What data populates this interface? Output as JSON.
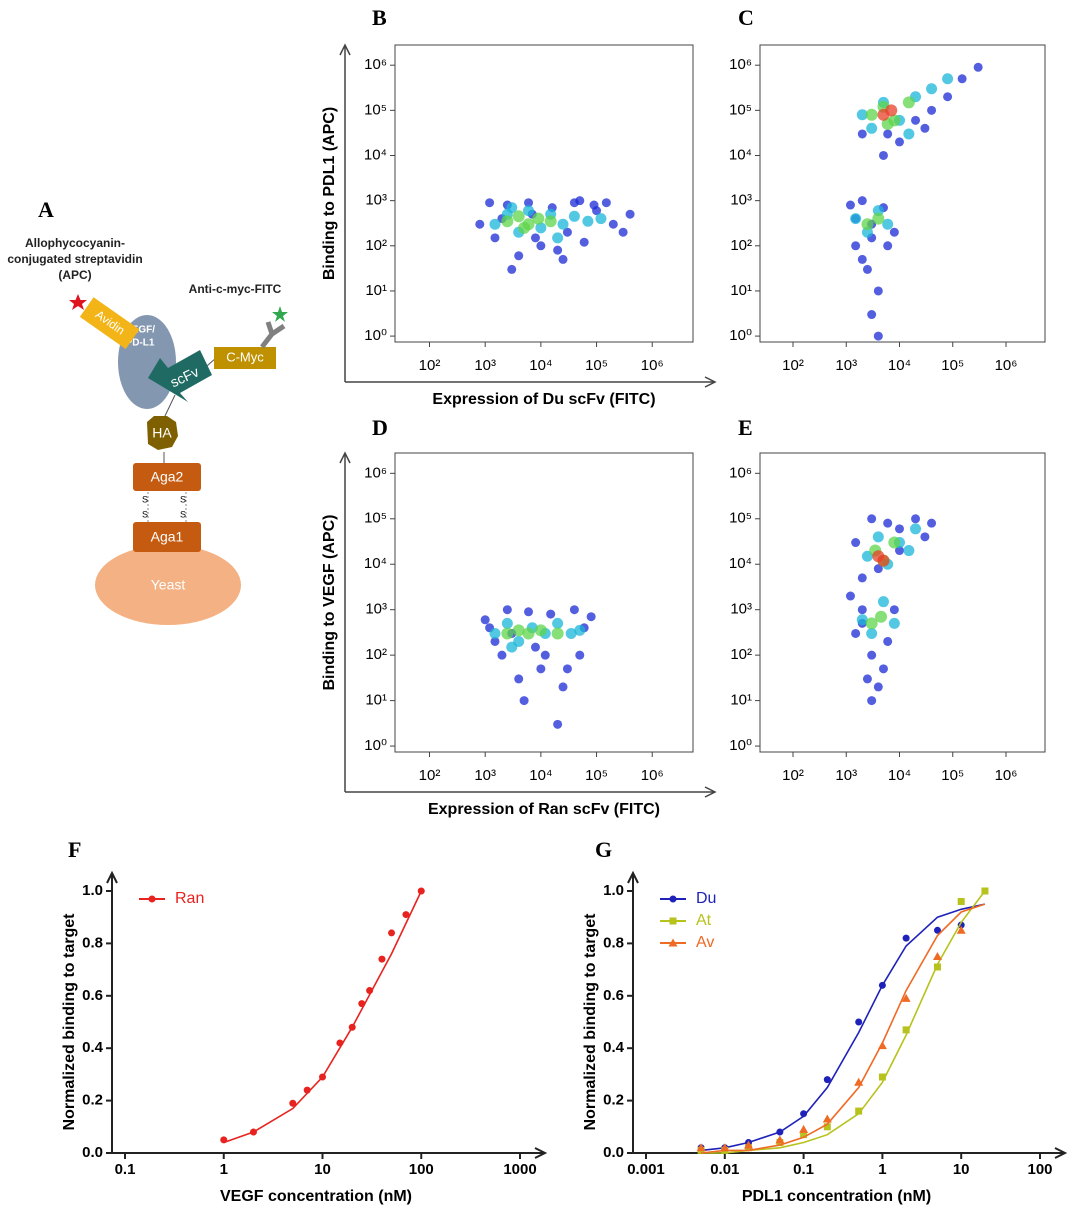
{
  "diagram": {
    "label": "A",
    "apc_lines": [
      "Allophycocyanin-",
      "conjugated streptavidin",
      "(APC)"
    ],
    "fitc": "Anti-c-myc-FITC",
    "avidin": "Avidin",
    "target_lines": [
      "VEGF/",
      "PD-L1"
    ],
    "cmyc": "C-Myc",
    "scfv": "scFv",
    "ha": "HA",
    "aga2": "Aga2",
    "aga1": "Aga1",
    "yeast": "Yeast",
    "disulfide": [
      "S",
      "S",
      "S",
      "S"
    ]
  },
  "chart_data": [
    {
      "type": "scatter",
      "panel": "B",
      "y_label": "Binding to PDL1 (APC)",
      "x_label": "Expression of Du scFv (FITC)",
      "log_x": true,
      "log_y": true,
      "xlim": [
        24,
        5400000
      ],
      "ylim": [
        0.74,
        2800000
      ],
      "xticks": [
        {
          "value": 100,
          "label": "10²"
        },
        {
          "value": 1000,
          "label": "10³"
        },
        {
          "value": 10000,
          "label": "10⁴"
        },
        {
          "value": 100000,
          "label": "10⁵"
        },
        {
          "value": 1000000,
          "label": "10⁶"
        }
      ],
      "yticks": [
        {
          "value": 1,
          "label": "10⁰"
        },
        {
          "value": 10,
          "label": "10¹"
        },
        {
          "value": 100,
          "label": "10²"
        },
        {
          "value": 1000,
          "label": "10³"
        },
        {
          "value": 10000,
          "label": "10⁴"
        },
        {
          "value": 100000,
          "label": "10⁵"
        },
        {
          "value": 1000000,
          "label": "10⁶"
        }
      ],
      "series": [
        {
          "color": "#1b2ad6",
          "x": [
            800,
            1500,
            2500,
            4000,
            6000,
            10000,
            16000,
            25000,
            40000,
            60000,
            100000,
            200000,
            400000,
            1200,
            3000,
            8000,
            20000,
            50000,
            150000,
            300000,
            2000,
            7000,
            30000,
            90000
          ],
          "values": [
            300,
            150,
            800,
            60,
            900,
            100,
            700,
            50,
            900,
            120,
            600,
            300,
            500,
            900,
            30,
            150,
            80,
            1000,
            900,
            200,
            400,
            500,
            200,
            800
          ]
        },
        {
          "color": "#19b6d8",
          "x": [
            1500,
            2500,
            4000,
            6000,
            10000,
            15000,
            25000,
            40000,
            70000,
            120000,
            3000,
            20000
          ],
          "values": [
            300,
            500,
            200,
            600,
            250,
            500,
            300,
            450,
            350,
            400,
            700,
            150
          ]
        },
        {
          "color": "#5ed44a",
          "x": [
            2500,
            4000,
            6000,
            9000,
            15000,
            5000
          ],
          "values": [
            350,
            450,
            300,
            400,
            350,
            250
          ]
        }
      ]
    },
    {
      "type": "scatter",
      "panel": "C",
      "log_x": true,
      "log_y": true,
      "xlim": [
        24,
        5400000
      ],
      "ylim": [
        0.74,
        2800000
      ],
      "xticks": [
        {
          "value": 100,
          "label": "10²"
        },
        {
          "value": 1000,
          "label": "10³"
        },
        {
          "value": 10000,
          "label": "10⁴"
        },
        {
          "value": 100000,
          "label": "10⁵"
        },
        {
          "value": 1000000,
          "label": "10⁶"
        }
      ],
      "yticks": [
        {
          "value": 1,
          "label": "10⁰"
        },
        {
          "value": 10,
          "label": "10¹"
        },
        {
          "value": 100,
          "label": "10²"
        },
        {
          "value": 1000,
          "label": "10³"
        },
        {
          "value": 10000,
          "label": "10⁴"
        },
        {
          "value": 100000,
          "label": "10⁵"
        },
        {
          "value": 1000000,
          "label": "10⁶"
        }
      ],
      "series": [
        {
          "color": "#1b2ad6",
          "x": [
            1200,
            2000,
            3000,
            5000,
            8000,
            1500,
            2500,
            4000,
            6000,
            3000,
            2000,
            4000,
            1500,
            3000,
            6000,
            10000,
            20000,
            40000,
            80000,
            150000,
            5000,
            2000,
            30000,
            300000
          ],
          "values": [
            800,
            1000,
            300,
            700,
            200,
            100,
            30,
            10,
            100,
            3,
            50,
            1,
            400,
            150,
            30000,
            20000,
            60000,
            100000,
            200000,
            500000,
            10000,
            30000,
            40000,
            900000
          ]
        },
        {
          "color": "#19b6d8",
          "x": [
            1500,
            2500,
            4000,
            6000,
            2000,
            3000,
            5000,
            10000,
            20000,
            40000,
            80000,
            15000
          ],
          "values": [
            400,
            200,
            600,
            300,
            80000,
            40000,
            150000,
            60000,
            200000,
            300000,
            500000,
            30000
          ]
        },
        {
          "color": "#5ed44a",
          "x": [
            2500,
            4000,
            3000,
            5000,
            8000,
            15000,
            6000
          ],
          "values": [
            300,
            400,
            80000,
            120000,
            60000,
            150000,
            50000
          ]
        },
        {
          "color": "#e8402a",
          "x": [
            5000,
            7000
          ],
          "values": [
            80000,
            100000
          ]
        }
      ]
    },
    {
      "type": "scatter",
      "panel": "D",
      "y_label": "Binding to VEGF (APC)",
      "x_label": "Expression of  Ran scFv (FITC)",
      "log_x": true,
      "log_y": true,
      "xlim": [
        24,
        5400000
      ],
      "ylim": [
        0.74,
        2800000
      ],
      "xticks": [
        {
          "value": 100,
          "label": "10²"
        },
        {
          "value": 1000,
          "label": "10³"
        },
        {
          "value": 10000,
          "label": "10⁴"
        },
        {
          "value": 100000,
          "label": "10⁵"
        },
        {
          "value": 1000000,
          "label": "10⁶"
        }
      ],
      "yticks": [
        {
          "value": 1,
          "label": "10⁰"
        },
        {
          "value": 10,
          "label": "10¹"
        },
        {
          "value": 100,
          "label": "10²"
        },
        {
          "value": 1000,
          "label": "10³"
        },
        {
          "value": 10000,
          "label": "10⁴"
        },
        {
          "value": 100000,
          "label": "10⁵"
        },
        {
          "value": 1000000,
          "label": "10⁶"
        }
      ],
      "series": [
        {
          "color": "#1b2ad6",
          "x": [
            1000,
            1500,
            2500,
            4000,
            6000,
            10000,
            15000,
            25000,
            40000,
            60000,
            80000,
            2000,
            5000,
            8000,
            20000,
            3000,
            12000,
            30000,
            1200,
            50000
          ],
          "values": [
            600,
            200,
            1000,
            30,
            900,
            50,
            800,
            20,
            1000,
            400,
            700,
            100,
            10,
            150,
            3,
            300,
            100,
            50,
            400,
            100
          ]
        },
        {
          "color": "#19b6d8",
          "x": [
            1500,
            2500,
            4000,
            7000,
            12000,
            20000,
            35000,
            3000,
            50000
          ],
          "values": [
            300,
            500,
            200,
            400,
            300,
            500,
            300,
            150,
            350
          ]
        },
        {
          "color": "#5ed44a",
          "x": [
            2500,
            4000,
            6000,
            10000,
            20000
          ],
          "values": [
            300,
            350,
            300,
            350,
            300
          ]
        }
      ]
    },
    {
      "type": "scatter",
      "panel": "E",
      "log_x": true,
      "log_y": true,
      "xlim": [
        24,
        5400000
      ],
      "ylim": [
        0.74,
        2800000
      ],
      "xticks": [
        {
          "value": 100,
          "label": "10²"
        },
        {
          "value": 1000,
          "label": "10³"
        },
        {
          "value": 10000,
          "label": "10⁴"
        },
        {
          "value": 100000,
          "label": "10⁵"
        },
        {
          "value": 1000000,
          "label": "10⁶"
        }
      ],
      "yticks": [
        {
          "value": 1,
          "label": "10⁰"
        },
        {
          "value": 10,
          "label": "10¹"
        },
        {
          "value": 100,
          "label": "10²"
        },
        {
          "value": 1000,
          "label": "10³"
        },
        {
          "value": 10000,
          "label": "10⁴"
        },
        {
          "value": 100000,
          "label": "10⁵"
        },
        {
          "value": 1000000,
          "label": "10⁶"
        }
      ],
      "series": [
        {
          "color": "#1b2ad6",
          "x": [
            1200,
            2000,
            3000,
            5000,
            8000,
            1500,
            2500,
            4000,
            6000,
            3000,
            2000,
            4000,
            1500,
            3000,
            6000,
            10000,
            20000,
            40000,
            10000,
            2000,
            30000
          ],
          "values": [
            2000,
            500,
            100,
            50,
            1000,
            300,
            30,
            20,
            200,
            10,
            5000,
            8000,
            30000,
            100000,
            80000,
            60000,
            100000,
            80000,
            20000,
            1000,
            40000
          ]
        },
        {
          "color": "#19b6d8",
          "x": [
            2000,
            3000,
            5000,
            8000,
            2500,
            4000,
            6000,
            10000,
            15000,
            20000
          ],
          "values": [
            600,
            300,
            1500,
            500,
            15000,
            40000,
            10000,
            30000,
            20000,
            60000
          ]
        },
        {
          "color": "#5ed44a",
          "x": [
            3000,
            4500,
            3500,
            5000,
            8000
          ],
          "values": [
            500,
            700,
            20000,
            12000,
            30000
          ]
        },
        {
          "color": "#e8402a",
          "x": [
            4000,
            5000
          ],
          "values": [
            15000,
            12000
          ]
        }
      ]
    },
    {
      "type": "line",
      "panel": "F",
      "y_label": "Normalized binding to target",
      "x_label": "VEGF concentration (nM)",
      "log_x": true,
      "legend": "upper left",
      "xlim": [
        0.1,
        1000
      ],
      "ylim": [
        0,
        1
      ],
      "xticks": [
        0.1,
        1,
        10,
        100,
        1000
      ],
      "yticks": [
        {
          "value": 0,
          "label": "0.0"
        },
        0.2,
        0.4,
        0.6,
        0.8,
        {
          "value": 1,
          "label": "1.0"
        }
      ],
      "fit_x": [
        1,
        2,
        5,
        10,
        20,
        50,
        100
      ],
      "series": [
        {
          "name": "Ran",
          "color": "#e8231f",
          "marker": "circle",
          "x": [
            1,
            2,
            5,
            7,
            10,
            15,
            20,
            25,
            30,
            40,
            50,
            70,
            100
          ],
          "values": [
            0.05,
            0.08,
            0.19,
            0.24,
            0.29,
            0.42,
            0.48,
            0.57,
            0.62,
            0.74,
            0.84,
            0.91,
            1.0
          ],
          "fit_values": [
            0.04,
            0.08,
            0.17,
            0.29,
            0.48,
            0.76,
            1.0
          ]
        }
      ]
    },
    {
      "type": "line",
      "panel": "G",
      "y_label": "Normalized binding to target",
      "x_label": "PDL1 concentration (nM)",
      "log_x": true,
      "legend": "upper left",
      "xlim": [
        0.001,
        100
      ],
      "ylim": [
        0,
        1
      ],
      "xticks": [
        0.001,
        0.01,
        0.1,
        1,
        10,
        100
      ],
      "yticks": [
        {
          "value": 0,
          "label": "0.0"
        },
        0.2,
        0.4,
        0.6,
        0.8,
        {
          "value": 1,
          "label": "1.0"
        }
      ],
      "fit_x": [
        0.005,
        0.01,
        0.02,
        0.05,
        0.1,
        0.2,
        0.5,
        1,
        2,
        5,
        10,
        20
      ],
      "series": [
        {
          "name": "Du",
          "color": "#1f22b8",
          "marker": "circle",
          "x": [
            0.005,
            0.01,
            0.02,
            0.05,
            0.1,
            0.2,
            0.5,
            1,
            2,
            5,
            10
          ],
          "values": [
            0.02,
            0.02,
            0.04,
            0.08,
            0.15,
            0.28,
            0.5,
            0.64,
            0.82,
            0.85,
            0.87
          ],
          "fit_values": [
            0.01,
            0.02,
            0.04,
            0.08,
            0.14,
            0.25,
            0.46,
            0.64,
            0.79,
            0.9,
            0.93,
            0.95
          ]
        },
        {
          "name": "At",
          "color": "#b7c21c",
          "marker": "square",
          "x": [
            0.005,
            0.01,
            0.02,
            0.05,
            0.1,
            0.2,
            0.5,
            1,
            2,
            5,
            10,
            20
          ],
          "values": [
            0.01,
            0.01,
            0.02,
            0.04,
            0.07,
            0.1,
            0.16,
            0.29,
            0.47,
            0.71,
            0.96,
            1.0
          ],
          "fit_values": [
            0.0,
            0.0,
            0.01,
            0.02,
            0.04,
            0.07,
            0.15,
            0.27,
            0.45,
            0.72,
            0.88,
            1.0
          ]
        },
        {
          "name": "Av",
          "color": "#ef6a24",
          "marker": "triangle",
          "x": [
            0.005,
            0.01,
            0.02,
            0.05,
            0.1,
            0.2,
            0.5,
            1,
            2,
            5,
            10
          ],
          "values": [
            0.02,
            0.02,
            0.03,
            0.05,
            0.09,
            0.13,
            0.27,
            0.41,
            0.59,
            0.75,
            0.85
          ],
          "fit_values": [
            0.0,
            0.01,
            0.01,
            0.03,
            0.06,
            0.11,
            0.25,
            0.42,
            0.62,
            0.83,
            0.92,
            0.95
          ]
        }
      ]
    }
  ]
}
